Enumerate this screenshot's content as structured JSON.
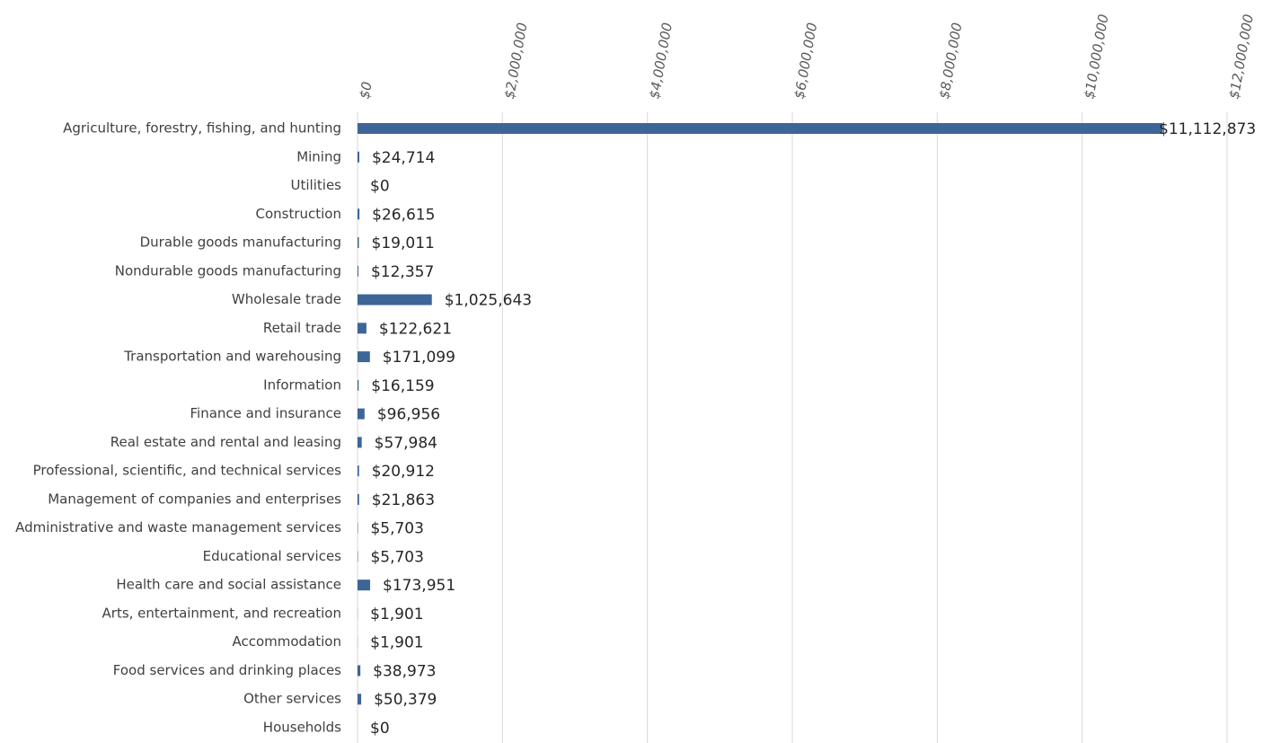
{
  "chart_data": {
    "type": "bar",
    "orientation": "horizontal",
    "categories": [
      "Agriculture, forestry, fishing, and hunting",
      "Mining",
      "Utilities",
      "Construction",
      "Durable goods manufacturing",
      "Nondurable goods manufacturing",
      "Wholesale trade",
      "Retail trade",
      "Transportation and warehousing",
      "Information",
      "Finance and insurance",
      "Real estate and rental and leasing",
      "Professional, scientific, and technical services",
      "Management of companies and enterprises",
      "Administrative and waste management services",
      "Educational services",
      "Health care and social assistance",
      "Arts, entertainment, and recreation",
      "Accommodation",
      "Food services and drinking places",
      "Other services",
      "Households"
    ],
    "values": [
      11112873,
      24714,
      0,
      26615,
      19011,
      12357,
      1025643,
      122621,
      171099,
      16159,
      96956,
      57984,
      20912,
      21863,
      5703,
      5703,
      173951,
      1901,
      1901,
      38973,
      50379,
      0
    ],
    "value_labels": [
      "$11,112,873",
      "$24,714",
      "$0",
      "$26,615",
      "$19,011",
      "$12,357",
      "$1,025,643",
      "$122,621",
      "$171,099",
      "$16,159",
      "$96,956",
      "$57,984",
      "$20,912",
      "$21,863",
      "$5,703",
      "$5,703",
      "$173,951",
      "$1,901",
      "$1,901",
      "$38,973",
      "$50,379",
      "$0"
    ],
    "color": "#3d6598",
    "xlim": [
      0,
      12000000
    ],
    "xticks": [
      {
        "value": 0,
        "label": "$0"
      },
      {
        "value": 2000000,
        "label": "$2,000,000"
      },
      {
        "value": 4000000,
        "label": "$4,000,000"
      },
      {
        "value": 6000000,
        "label": "$6,000,000"
      },
      {
        "value": 8000000,
        "label": "$8,000,000"
      },
      {
        "value": 10000000,
        "label": "$10,000,000"
      },
      {
        "value": 12000000,
        "label": "$12,000,000"
      }
    ],
    "grid": true
  }
}
